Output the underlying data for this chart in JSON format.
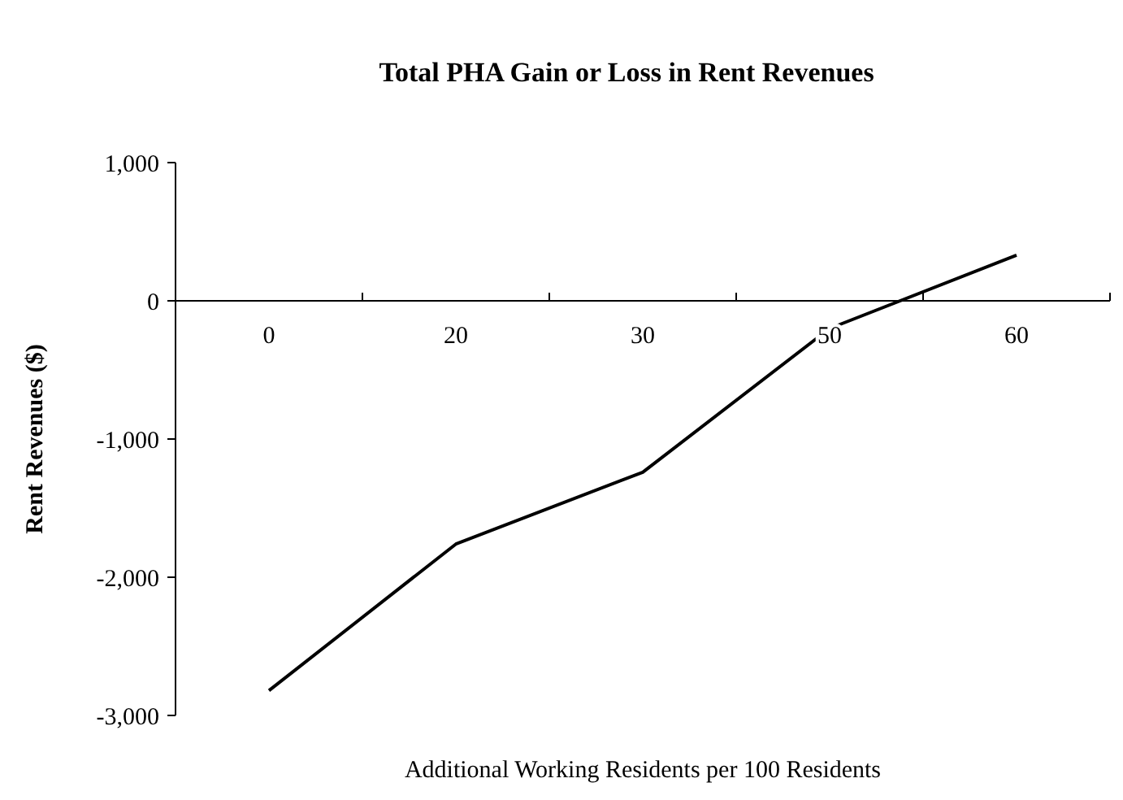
{
  "chart_data": {
    "type": "line",
    "title": "Total PHA Gain or Loss in Rent Revenues",
    "xlabel": "Additional Working Residents per 100 Residents",
    "ylabel": "Rent Revenues ($)",
    "categories": [
      "0",
      "20",
      "30",
      "50",
      "60"
    ],
    "series": [
      {
        "color": "#000000",
        "values": [
          -2820,
          -1760,
          -1240,
          -200,
          330
        ]
      }
    ],
    "ylim": [
      -3000,
      1000
    ],
    "yticks": [
      {
        "value": 1000,
        "label": "1,000"
      },
      0,
      {
        "value": -1000,
        "label": "-1,000"
      },
      {
        "value": -2000,
        "label": "-2,000"
      },
      {
        "value": -3000,
        "label": "-3,000"
      }
    ],
    "grid": false,
    "marker": "none",
    "line_style": "solid"
  }
}
